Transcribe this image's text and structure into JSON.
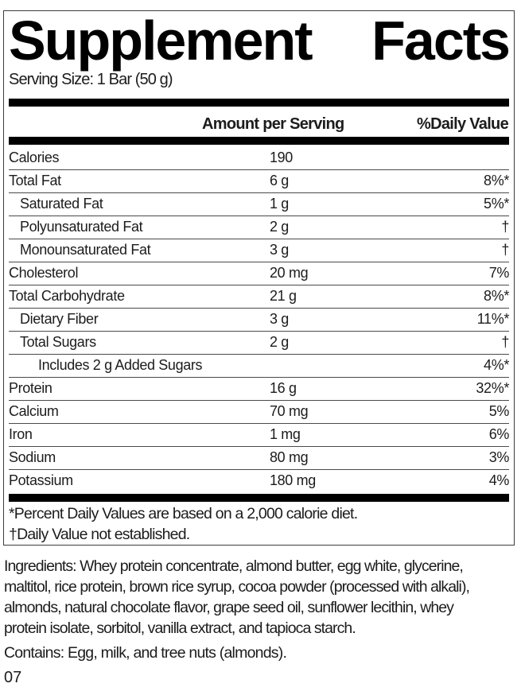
{
  "label": {
    "title_left": "Supplement",
    "title_right": "Facts",
    "serving_size": "Serving Size: 1 Bar (50 g)",
    "columns": {
      "amount": "Amount per Serving",
      "daily_value": "%Daily Value"
    },
    "rows": [
      {
        "label": "Calories",
        "amount": "190",
        "dv": "",
        "indent": 0
      },
      {
        "label": "Total Fat",
        "amount": "6 g",
        "dv": "8%*",
        "indent": 0
      },
      {
        "label": "Saturated Fat",
        "amount": "1 g",
        "dv": "5%*",
        "indent": 1
      },
      {
        "label": "Polyunsaturated Fat",
        "amount": "2 g",
        "dv": "†",
        "indent": 1
      },
      {
        "label": "Monounsaturated Fat",
        "amount": "3 g",
        "dv": "†",
        "indent": 1
      },
      {
        "label": "Cholesterol",
        "amount": "20 mg",
        "dv": "7%",
        "indent": 0
      },
      {
        "label": "Total Carbohydrate",
        "amount": "21 g",
        "dv": "8%*",
        "indent": 0
      },
      {
        "label": "Dietary Fiber",
        "amount": "3 g",
        "dv": "11%*",
        "indent": 1
      },
      {
        "label": "Total Sugars",
        "amount": "2 g",
        "dv": "†",
        "indent": 1
      },
      {
        "label": "Includes 2 g Added Sugars",
        "amount": "",
        "dv": "4%*",
        "indent": 2
      },
      {
        "label": "Protein",
        "amount": "16 g",
        "dv": "32%*",
        "indent": 0
      },
      {
        "label": "Calcium",
        "amount": "70 mg",
        "dv": "5%",
        "indent": 0
      },
      {
        "label": "Iron",
        "amount": "1 mg",
        "dv": "6%",
        "indent": 0
      },
      {
        "label": "Sodium",
        "amount": "80 mg",
        "dv": "3%",
        "indent": 0
      },
      {
        "label": "Potassium",
        "amount": "180 mg",
        "dv": "4%",
        "indent": 0
      }
    ],
    "footnotes": [
      "*Percent Daily Values are based on a 2,000 calorie diet.",
      "†Daily Value not established."
    ]
  },
  "ingredients_lines": [
    "Ingredients: Whey protein concentrate, almond butter, egg white, glycerine,",
    "maltitol, rice protein, brown rice syrup, cocoa powder (processed with alkali),",
    "almonds, natural chocolate flavor, grape seed oil, sunflower lecithin, whey",
    "protein isolate, sorbitol, vanilla extract, and tapioca starch."
  ],
  "contains": "Contains: Egg, milk, and tree nuts (almonds).",
  "lot_code": "07",
  "colors": {
    "text": "#1c1c1c",
    "bar": "#000000",
    "hairline": "#4a4a4a",
    "border": "#3c3c3c",
    "background": "#ffffff"
  }
}
